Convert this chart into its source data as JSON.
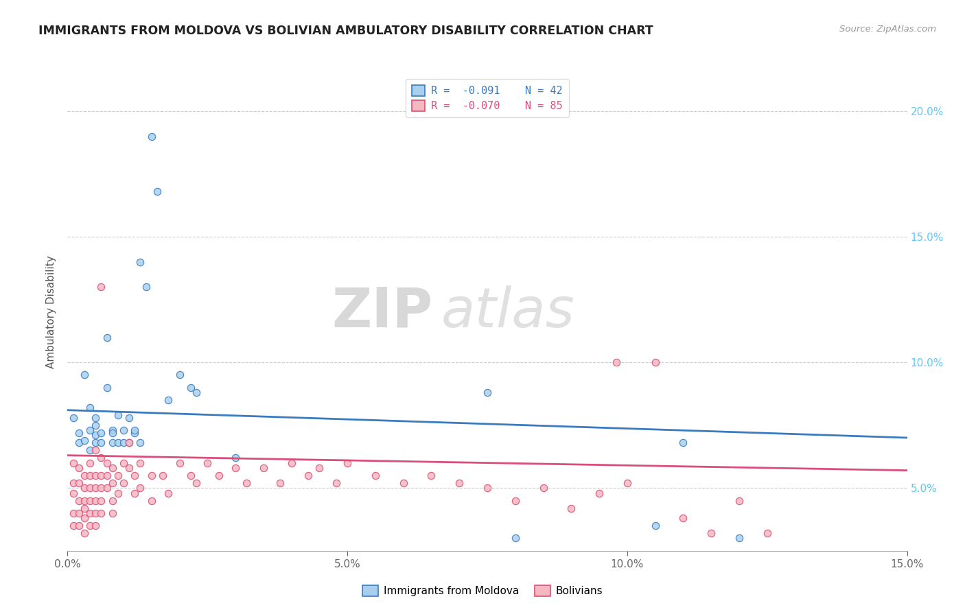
{
  "title": "IMMIGRANTS FROM MOLDOVA VS BOLIVIAN AMBULATORY DISABILITY CORRELATION CHART",
  "source": "Source: ZipAtlas.com",
  "ylabel": "Ambulatory Disability",
  "legend_label1": "Immigrants from Moldova",
  "legend_label2": "Bolivians",
  "legend_r1": "R =  -0.091",
  "legend_n1": "N = 42",
  "legend_r2": "R =  -0.070",
  "legend_n2": "N = 85",
  "color_moldova": "#a8d0ee",
  "color_bolivia": "#f4b8c1",
  "trendline_color_moldova": "#3a7abf",
  "trendline_color_bolivia": "#d94f7a",
  "xmin": 0.0,
  "xmax": 0.15,
  "ymin": 0.025,
  "ymax": 0.215,
  "xticks": [
    0.0,
    0.05,
    0.1,
    0.15
  ],
  "xtick_labels": [
    "0.0%",
    "5.0%",
    "10.0%",
    "15.0%"
  ],
  "yticks": [
    0.05,
    0.1,
    0.15,
    0.2
  ],
  "ytick_labels_right": [
    "5.0%",
    "10.0%",
    "15.0%",
    "20.0%"
  ],
  "watermark_zip": "ZIP",
  "watermark_atlas": "atlas",
  "moldova_points": [
    [
      0.001,
      0.078
    ],
    [
      0.002,
      0.072
    ],
    [
      0.002,
      0.068
    ],
    [
      0.003,
      0.095
    ],
    [
      0.003,
      0.069
    ],
    [
      0.004,
      0.073
    ],
    [
      0.004,
      0.082
    ],
    [
      0.004,
      0.065
    ],
    [
      0.005,
      0.071
    ],
    [
      0.005,
      0.075
    ],
    [
      0.005,
      0.068
    ],
    [
      0.005,
      0.078
    ],
    [
      0.006,
      0.072
    ],
    [
      0.006,
      0.068
    ],
    [
      0.007,
      0.11
    ],
    [
      0.007,
      0.09
    ],
    [
      0.008,
      0.073
    ],
    [
      0.008,
      0.068
    ],
    [
      0.008,
      0.072
    ],
    [
      0.009,
      0.079
    ],
    [
      0.009,
      0.068
    ],
    [
      0.01,
      0.073
    ],
    [
      0.01,
      0.068
    ],
    [
      0.011,
      0.078
    ],
    [
      0.011,
      0.068
    ],
    [
      0.012,
      0.072
    ],
    [
      0.012,
      0.073
    ],
    [
      0.013,
      0.068
    ],
    [
      0.013,
      0.14
    ],
    [
      0.014,
      0.13
    ],
    [
      0.015,
      0.19
    ],
    [
      0.016,
      0.168
    ],
    [
      0.018,
      0.085
    ],
    [
      0.02,
      0.095
    ],
    [
      0.022,
      0.09
    ],
    [
      0.023,
      0.088
    ],
    [
      0.03,
      0.062
    ],
    [
      0.075,
      0.088
    ],
    [
      0.08,
      0.03
    ],
    [
      0.105,
      0.035
    ],
    [
      0.11,
      0.068
    ],
    [
      0.12,
      0.03
    ]
  ],
  "bolivia_points": [
    [
      0.001,
      0.06
    ],
    [
      0.001,
      0.052
    ],
    [
      0.001,
      0.048
    ],
    [
      0.001,
      0.04
    ],
    [
      0.001,
      0.035
    ],
    [
      0.002,
      0.058
    ],
    [
      0.002,
      0.052
    ],
    [
      0.002,
      0.045
    ],
    [
      0.002,
      0.04
    ],
    [
      0.002,
      0.035
    ],
    [
      0.003,
      0.055
    ],
    [
      0.003,
      0.05
    ],
    [
      0.003,
      0.045
    ],
    [
      0.003,
      0.042
    ],
    [
      0.003,
      0.038
    ],
    [
      0.003,
      0.032
    ],
    [
      0.004,
      0.06
    ],
    [
      0.004,
      0.055
    ],
    [
      0.004,
      0.05
    ],
    [
      0.004,
      0.045
    ],
    [
      0.004,
      0.04
    ],
    [
      0.004,
      0.035
    ],
    [
      0.005,
      0.065
    ],
    [
      0.005,
      0.055
    ],
    [
      0.005,
      0.05
    ],
    [
      0.005,
      0.045
    ],
    [
      0.005,
      0.04
    ],
    [
      0.005,
      0.035
    ],
    [
      0.006,
      0.13
    ],
    [
      0.006,
      0.062
    ],
    [
      0.006,
      0.055
    ],
    [
      0.006,
      0.05
    ],
    [
      0.006,
      0.045
    ],
    [
      0.006,
      0.04
    ],
    [
      0.007,
      0.06
    ],
    [
      0.007,
      0.055
    ],
    [
      0.007,
      0.05
    ],
    [
      0.008,
      0.058
    ],
    [
      0.008,
      0.052
    ],
    [
      0.008,
      0.045
    ],
    [
      0.008,
      0.04
    ],
    [
      0.009,
      0.055
    ],
    [
      0.009,
      0.048
    ],
    [
      0.01,
      0.06
    ],
    [
      0.01,
      0.052
    ],
    [
      0.011,
      0.068
    ],
    [
      0.011,
      0.058
    ],
    [
      0.012,
      0.055
    ],
    [
      0.012,
      0.048
    ],
    [
      0.013,
      0.06
    ],
    [
      0.013,
      0.05
    ],
    [
      0.015,
      0.055
    ],
    [
      0.015,
      0.045
    ],
    [
      0.017,
      0.055
    ],
    [
      0.018,
      0.048
    ],
    [
      0.02,
      0.06
    ],
    [
      0.022,
      0.055
    ],
    [
      0.023,
      0.052
    ],
    [
      0.025,
      0.06
    ],
    [
      0.027,
      0.055
    ],
    [
      0.03,
      0.058
    ],
    [
      0.032,
      0.052
    ],
    [
      0.035,
      0.058
    ],
    [
      0.038,
      0.052
    ],
    [
      0.04,
      0.06
    ],
    [
      0.043,
      0.055
    ],
    [
      0.045,
      0.058
    ],
    [
      0.048,
      0.052
    ],
    [
      0.05,
      0.06
    ],
    [
      0.055,
      0.055
    ],
    [
      0.06,
      0.052
    ],
    [
      0.065,
      0.055
    ],
    [
      0.07,
      0.052
    ],
    [
      0.075,
      0.05
    ],
    [
      0.08,
      0.045
    ],
    [
      0.085,
      0.05
    ],
    [
      0.09,
      0.042
    ],
    [
      0.095,
      0.048
    ],
    [
      0.1,
      0.052
    ],
    [
      0.105,
      0.1
    ],
    [
      0.11,
      0.038
    ],
    [
      0.115,
      0.032
    ],
    [
      0.12,
      0.045
    ],
    [
      0.125,
      0.032
    ],
    [
      0.098,
      0.1
    ]
  ],
  "moldova_trend_y0": 0.081,
  "moldova_trend_y1": 0.07,
  "bolivia_trend_y0": 0.063,
  "bolivia_trend_y1": 0.057
}
